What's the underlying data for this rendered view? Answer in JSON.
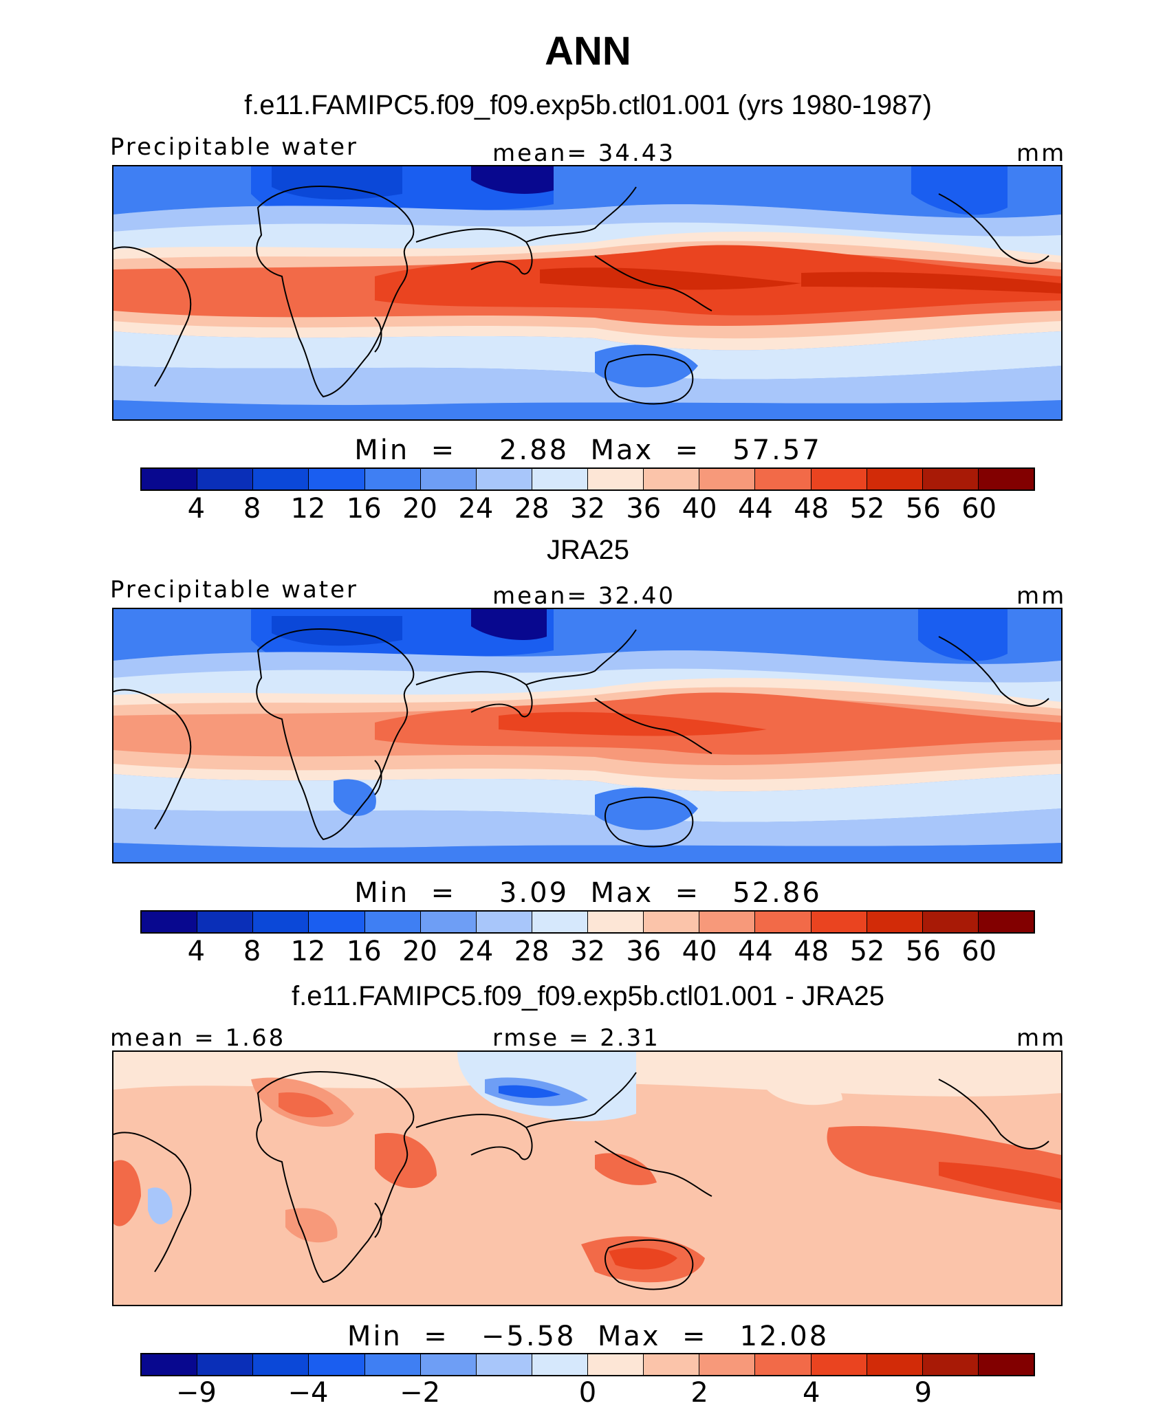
{
  "title": "ANN",
  "palette_abs": [
    "#08088f",
    "#0a2fb8",
    "#0b48d8",
    "#1a5ef0",
    "#3f7ff3",
    "#6e9ef5",
    "#a8c6fa",
    "#d6e8fc",
    "#fde6d6",
    "#fbc4aa",
    "#f7997a",
    "#f26a48",
    "#ea4420",
    "#d22b08",
    "#a81a06",
    "#820000"
  ],
  "palette_diff": [
    "#08088f",
    "#0a2fb8",
    "#0b48d8",
    "#1a5ef0",
    "#3f7ff3",
    "#6e9ef5",
    "#a8c6fa",
    "#d6e8fc",
    "#fde6d6",
    "#fbc4aa",
    "#f7997a",
    "#f26a48",
    "#ea4420",
    "#d22b08",
    "#a81a06",
    "#820000"
  ],
  "panels": [
    {
      "title": "f.e11.FAMIPC5.f09_f09.exp5b.ctl01.001 (yrs 1980-1987)",
      "left_label": "Precipitable water",
      "mid_label": "mean=   34.43",
      "unit": "mm",
      "minmax": "Min  =    2.88  Max  =   57.57",
      "ticks": [
        "4",
        "8",
        "12",
        "16",
        "20",
        "24",
        "28",
        "32",
        "36",
        "40",
        "44",
        "48",
        "52",
        "56",
        "60"
      ]
    },
    {
      "title": "JRA25",
      "left_label": "Precipitable water",
      "mid_label": "mean=   32.40",
      "unit": "mm",
      "minmax": "Min  =    3.09  Max  =   52.86",
      "ticks": [
        "4",
        "8",
        "12",
        "16",
        "20",
        "24",
        "28",
        "32",
        "36",
        "40",
        "44",
        "48",
        "52",
        "56",
        "60"
      ]
    },
    {
      "title": "f.e11.FAMIPC5.f09_f09.exp5b.ctl01.001 - JRA25",
      "left_label": "mean =    1.68",
      "mid_label": "rmse =    2.31",
      "unit": "mm",
      "minmax": "Min  =   −5.58  Max  =   12.08",
      "ticks": [
        "−9",
        "−4",
        "−2",
        "0",
        "2",
        "4",
        "9"
      ]
    }
  ]
}
